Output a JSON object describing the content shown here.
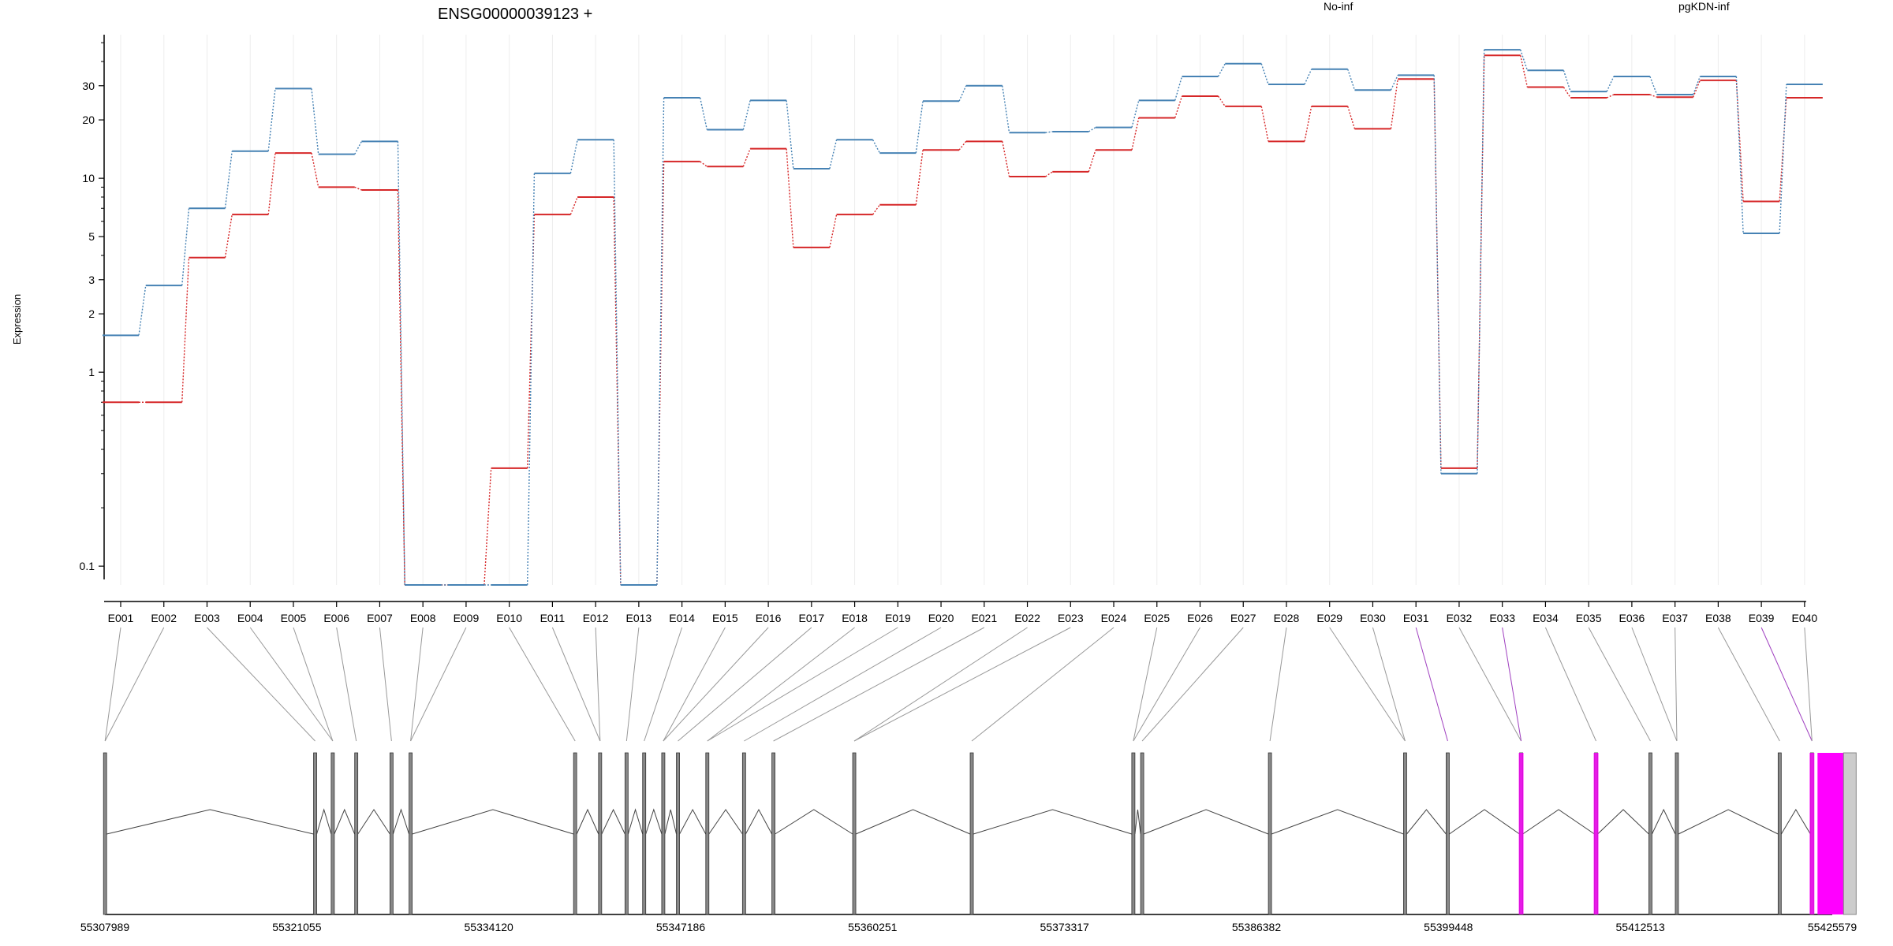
{
  "chart_data": {
    "type": "line",
    "title": "ENSG00000039123 +",
    "ylabel": "Expression",
    "y_scale": "log",
    "y_ticks": [
      "0.1",
      "1",
      "2",
      "3",
      "5",
      "10",
      "20",
      "30"
    ],
    "ylim": [
      0.08,
      55
    ],
    "grid": "vertical",
    "legend_placement": "top",
    "categories": [
      "E001",
      "E002",
      "E003",
      "E004",
      "E005",
      "E006",
      "E007",
      "E008",
      "E009",
      "E010",
      "E011",
      "E012",
      "E013",
      "E014",
      "E015",
      "E016",
      "E017",
      "E018",
      "E019",
      "E020",
      "E021",
      "E022",
      "E023",
      "E024",
      "E025",
      "E026",
      "E027",
      "E028",
      "E029",
      "E030",
      "E031",
      "E032",
      "E033",
      "E034",
      "E035",
      "E036",
      "E037",
      "E038",
      "E039",
      "E040"
    ],
    "series": [
      {
        "name": "No-inf",
        "color": "#d62728",
        "values": [
          0.7,
          0.7,
          3.9,
          6.5,
          13.5,
          9.0,
          8.7,
          0.08,
          0.08,
          0.32,
          6.5,
          8.0,
          0.08,
          12.2,
          11.5,
          14.2,
          4.4,
          6.5,
          7.3,
          14.0,
          15.5,
          10.2,
          10.8,
          14.0,
          20.5,
          26.5,
          23.5,
          15.5,
          23.5,
          18.0,
          32.5,
          0.32,
          43.0,
          29.5,
          26.0,
          27.0,
          26.2,
          32.0,
          7.6,
          26.0
        ]
      },
      {
        "name": "pgKDN-inf",
        "color": "#4682b4",
        "values": [
          1.55,
          2.8,
          7.0,
          13.8,
          29.0,
          13.3,
          15.5,
          0.08,
          0.08,
          0.08,
          10.6,
          15.8,
          0.08,
          26.0,
          17.8,
          25.2,
          11.2,
          15.8,
          13.5,
          25.0,
          30.0,
          17.2,
          17.4,
          18.3,
          25.2,
          33.5,
          39.0,
          30.5,
          36.5,
          28.5,
          34.0,
          0.3,
          46.0,
          36.0,
          28.0,
          33.5,
          27.0,
          33.5,
          5.2,
          30.5
        ]
      }
    ],
    "gene_model": {
      "coordinate_labels": [
        "55307989",
        "55321055",
        "55334120",
        "55347186",
        "55360251",
        "55373317",
        "55386382",
        "55399448",
        "55412513",
        "55425579"
      ],
      "coordinate_range": [
        55307989,
        55425579
      ],
      "exon_positions": [
        55308000,
        55322300,
        55323500,
        55325100,
        55327500,
        55328800,
        55340000,
        55341700,
        55343500,
        55344700,
        55346000,
        55347000,
        55349000,
        55351500,
        55353500,
        55359000,
        55367000,
        55378000,
        55378600,
        55387300,
        55396500,
        55399400,
        55404400,
        55409500,
        55413200,
        55415000,
        55422000,
        55424200
      ],
      "highlight_color": "#ff00ff",
      "highlight_exons": [
        31,
        33,
        39
      ]
    }
  }
}
